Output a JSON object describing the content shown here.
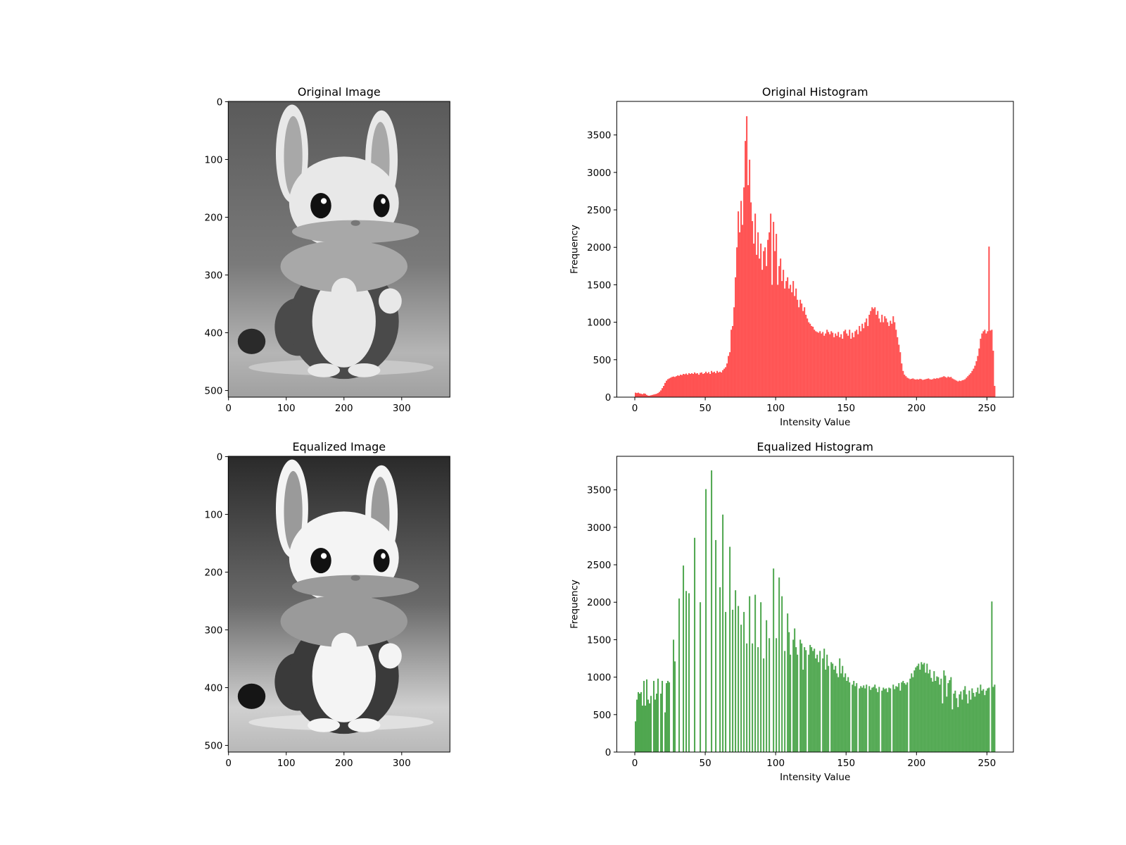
{
  "chart_data": [
    {
      "type": "image",
      "title": "Original Image",
      "xlim": [
        -0.5,
        383.5
      ],
      "ylim": [
        511.5,
        -0.5
      ],
      "xticks": [
        0,
        100,
        200,
        300
      ],
      "yticks": [
        0,
        100,
        200,
        300,
        400,
        500
      ],
      "equalized": false
    },
    {
      "type": "histogram",
      "title": "Original Histogram",
      "xlabel": "Intensity Value",
      "ylabel": "Frequency",
      "color": "#ff4d4d",
      "xlim": [
        -12.8,
        268.8
      ],
      "ylim": [
        0,
        3948
      ],
      "xticks": [
        0,
        50,
        100,
        150,
        200,
        250
      ],
      "yticks": [
        0,
        500,
        1000,
        1500,
        2000,
        2500,
        3000,
        3500
      ],
      "bins": [
        0,
        1,
        2,
        3,
        4,
        5,
        6,
        7,
        8,
        9,
        10,
        11,
        12,
        13,
        14,
        15,
        16,
        17,
        18,
        19,
        20,
        21,
        22,
        23,
        24,
        25,
        26,
        27,
        28,
        29,
        30,
        31,
        32,
        33,
        34,
        35,
        36,
        37,
        38,
        39,
        40,
        41,
        42,
        43,
        44,
        45,
        46,
        47,
        48,
        49,
        50,
        51,
        52,
        53,
        54,
        55,
        56,
        57,
        58,
        59,
        60,
        61,
        62,
        63,
        64,
        65,
        66,
        67,
        68,
        69,
        70,
        71,
        72,
        73,
        74,
        75,
        76,
        77,
        78,
        79,
        80,
        81,
        82,
        83,
        84,
        85,
        86,
        87,
        88,
        89,
        90,
        91,
        92,
        93,
        94,
        95,
        96,
        97,
        98,
        99,
        100,
        101,
        102,
        103,
        104,
        105,
        106,
        107,
        108,
        109,
        110,
        111,
        112,
        113,
        114,
        115,
        116,
        117,
        118,
        119,
        120,
        121,
        122,
        123,
        124,
        125,
        126,
        127,
        128,
        129,
        130,
        131,
        132,
        133,
        134,
        135,
        136,
        137,
        138,
        139,
        140,
        141,
        142,
        143,
        144,
        145,
        146,
        147,
        148,
        149,
        150,
        151,
        152,
        153,
        154,
        155,
        156,
        157,
        158,
        159,
        160,
        161,
        162,
        163,
        164,
        165,
        166,
        167,
        168,
        169,
        170,
        171,
        172,
        173,
        174,
        175,
        176,
        177,
        178,
        179,
        180,
        181,
        182,
        183,
        184,
        185,
        186,
        187,
        188,
        189,
        190,
        191,
        192,
        193,
        194,
        195,
        196,
        197,
        198,
        199,
        200,
        201,
        202,
        203,
        204,
        205,
        206,
        207,
        208,
        209,
        210,
        211,
        212,
        213,
        214,
        215,
        216,
        217,
        218,
        219,
        220,
        221,
        222,
        223,
        224,
        225,
        226,
        227,
        228,
        229,
        230,
        231,
        232,
        233,
        234,
        235,
        236,
        237,
        238,
        239,
        240,
        241,
        242,
        243,
        244,
        245,
        246,
        247,
        248,
        249,
        250,
        251,
        252,
        253,
        254,
        255,
        256
      ],
      "values": [
        60,
        55,
        60,
        50,
        45,
        40,
        50,
        45,
        30,
        20,
        20,
        25,
        30,
        35,
        40,
        45,
        55,
        70,
        90,
        120,
        150,
        190,
        220,
        240,
        250,
        260,
        270,
        275,
        270,
        280,
        290,
        285,
        300,
        295,
        310,
        305,
        315,
        300,
        320,
        310,
        320,
        310,
        330,
        315,
        320,
        300,
        325,
        330,
        310,
        320,
        340,
        320,
        335,
        310,
        350,
        330,
        340,
        320,
        350,
        330,
        340,
        330,
        360,
        380,
        400,
        450,
        550,
        600,
        900,
        950,
        1200,
        1600,
        2000,
        2480,
        2200,
        2620,
        2300,
        2800,
        3420,
        3750,
        2830,
        3170,
        2600,
        2350,
        2050,
        2450,
        1900,
        2200,
        1850,
        2050,
        1700,
        1950,
        2000,
        1750,
        2100,
        2200,
        2450,
        1500,
        2340,
        1950,
        2180,
        1500,
        1750,
        1850,
        1550,
        1700,
        1450,
        1550,
        1600,
        1450,
        1500,
        1400,
        1550,
        1350,
        1450,
        1300,
        1200,
        1300,
        1250,
        1150,
        1200,
        1100,
        1050,
        1000,
        980,
        950,
        940,
        900,
        880,
        870,
        860,
        880,
        850,
        870,
        820,
        850,
        900,
        870,
        840,
        880,
        860,
        800,
        850,
        820,
        870,
        800,
        840,
        780,
        880,
        900,
        850,
        820,
        900,
        780,
        860,
        800,
        880,
        900,
        840,
        950,
        880,
        980,
        920,
        1000,
        1050,
        950,
        1100,
        1150,
        1200,
        1180,
        1200,
        1100,
        1150,
        1050,
        1000,
        1100,
        1000,
        1080,
        1050,
        1000,
        950,
        1020,
        980,
        1080,
        1000,
        900,
        800,
        700,
        600,
        450,
        350,
        300,
        280,
        260,
        250,
        240,
        245,
        250,
        240,
        235,
        240,
        235,
        245,
        240,
        230,
        235,
        240,
        245,
        250,
        240,
        235,
        240,
        250,
        245,
        255,
        250,
        260,
        265,
        270,
        280,
        270,
        260,
        275,
        265,
        270,
        250,
        240,
        230,
        220,
        210,
        220,
        215,
        225,
        230,
        240,
        260,
        280,
        300,
        320,
        350,
        380,
        420,
        480,
        550,
        650,
        780,
        850,
        880,
        900,
        850,
        880,
        2010,
        890,
        900,
        620,
        150
      ]
    },
    {
      "type": "image",
      "title": "Equalized Image",
      "xlim": [
        -0.5,
        383.5
      ],
      "ylim": [
        511.5,
        -0.5
      ],
      "xticks": [
        0,
        100,
        200,
        300
      ],
      "yticks": [
        0,
        100,
        200,
        300,
        400,
        500
      ],
      "equalized": true
    },
    {
      "type": "histogram",
      "title": "Equalized Histogram",
      "xlabel": "Intensity Value",
      "ylabel": "Frequency",
      "color": "#4da64d",
      "xlim": [
        -12.8,
        268.8
      ],
      "ylim": [
        0,
        3948
      ],
      "xticks": [
        0,
        50,
        100,
        150,
        200,
        250
      ],
      "yticks": [
        0,
        500,
        1000,
        1500,
        2000,
        2500,
        3000,
        3500
      ],
      "bins": [
        0,
        1,
        2,
        3,
        4,
        5,
        6,
        7,
        8,
        9,
        10,
        11,
        12,
        13,
        14,
        15,
        16,
        17,
        18,
        19,
        20,
        21,
        22,
        23,
        24,
        25,
        26,
        27,
        28,
        29,
        30,
        31,
        32,
        33,
        34,
        35,
        36,
        37,
        38,
        39,
        40,
        41,
        42,
        43,
        44,
        45,
        46,
        47,
        48,
        49,
        50,
        51,
        52,
        53,
        54,
        55,
        56,
        57,
        58,
        59,
        60,
        61,
        62,
        63,
        64,
        65,
        66,
        67,
        68,
        69,
        70,
        71,
        72,
        73,
        74,
        75,
        76,
        77,
        78,
        79,
        80,
        81,
        82,
        83,
        84,
        85,
        86,
        87,
        88,
        89,
        90,
        91,
        92,
        93,
        94,
        95,
        96,
        97,
        98,
        99,
        100,
        101,
        102,
        103,
        104,
        105,
        106,
        107,
        108,
        109,
        110,
        111,
        112,
        113,
        114,
        115,
        116,
        117,
        118,
        119,
        120,
        121,
        122,
        123,
        124,
        125,
        126,
        127,
        128,
        129,
        130,
        131,
        132,
        133,
        134,
        135,
        136,
        137,
        138,
        139,
        140,
        141,
        142,
        143,
        144,
        145,
        146,
        147,
        148,
        149,
        150,
        151,
        152,
        153,
        154,
        155,
        156,
        157,
        158,
        159,
        160,
        161,
        162,
        163,
        164,
        165,
        166,
        167,
        168,
        169,
        170,
        171,
        172,
        173,
        174,
        175,
        176,
        177,
        178,
        179,
        180,
        181,
        182,
        183,
        184,
        185,
        186,
        187,
        188,
        189,
        190,
        191,
        192,
        193,
        194,
        195,
        196,
        197,
        198,
        199,
        200,
        201,
        202,
        203,
        204,
        205,
        206,
        207,
        208,
        209,
        210,
        211,
        212,
        213,
        214,
        215,
        216,
        217,
        218,
        219,
        220,
        221,
        222,
        223,
        224,
        225,
        226,
        227,
        228,
        229,
        230,
        231,
        232,
        233,
        234,
        235,
        236,
        237,
        238,
        239,
        240,
        241,
        242,
        243,
        244,
        245,
        246,
        247,
        248,
        249,
        250,
        251,
        252,
        253,
        254,
        255,
        256
      ],
      "values": [
        410,
        700,
        800,
        780,
        800,
        620,
        950,
        620,
        970,
        700,
        650,
        750,
        0,
        950,
        700,
        780,
        980,
        0,
        780,
        950,
        0,
        530,
        920,
        950,
        930,
        0,
        0,
        1500,
        1210,
        0,
        0,
        2050,
        0,
        0,
        2490,
        0,
        2150,
        0,
        2120,
        0,
        0,
        0,
        2860,
        0,
        0,
        0,
        2000,
        0,
        0,
        0,
        3510,
        0,
        0,
        0,
        3760,
        0,
        0,
        2830,
        0,
        0,
        2200,
        0,
        3170,
        0,
        1870,
        0,
        0,
        2740,
        0,
        1900,
        0,
        2160,
        0,
        1950,
        0,
        1700,
        0,
        1870,
        0,
        1450,
        0,
        2080,
        0,
        1450,
        0,
        2100,
        0,
        1400,
        0,
        2000,
        0,
        1250,
        0,
        1760,
        0,
        1520,
        0,
        0,
        2450,
        0,
        1520,
        0,
        2330,
        0,
        2080,
        0,
        1350,
        0,
        1850,
        1600,
        1300,
        0,
        1500,
        1650,
        1400,
        1300,
        0,
        1500,
        1450,
        1100,
        1400,
        1360,
        0,
        1300,
        1430,
        1400,
        1350,
        1380,
        1250,
        1300,
        1200,
        1350,
        0,
        1250,
        1380,
        1100,
        1300,
        1150,
        0,
        1200,
        1180,
        1100,
        1150,
        1050,
        1000,
        1250,
        1050,
        1150,
        1000,
        1050,
        950,
        1000,
        930,
        0,
        900,
        950,
        880,
        920,
        0,
        850,
        880,
        860,
        890,
        850,
        900,
        0,
        880,
        830,
        860,
        870,
        900,
        850,
        800,
        870,
        0,
        820,
        860,
        840,
        850,
        800,
        860,
        850,
        0,
        900,
        840,
        880,
        870,
        920,
        820,
        930,
        950,
        920,
        900,
        930,
        0,
        980,
        1050,
        1000,
        1090,
        1130,
        1150,
        1180,
        1100,
        1200,
        1170,
        1190,
        1060,
        1180,
        1050,
        1100,
        990,
        940,
        1080,
        950,
        1010,
        1000,
        900,
        980,
        650,
        1090,
        1020,
        740,
        920,
        960,
        1000,
        570,
        780,
        820,
        720,
        600,
        770,
        810,
        700,
        830,
        880,
        770,
        650,
        820,
        700,
        850,
        790,
        740,
        800,
        860,
        780,
        900,
        820,
        840,
        760,
        820,
        850,
        860,
        0,
        2010,
        870,
        900
      ]
    }
  ]
}
